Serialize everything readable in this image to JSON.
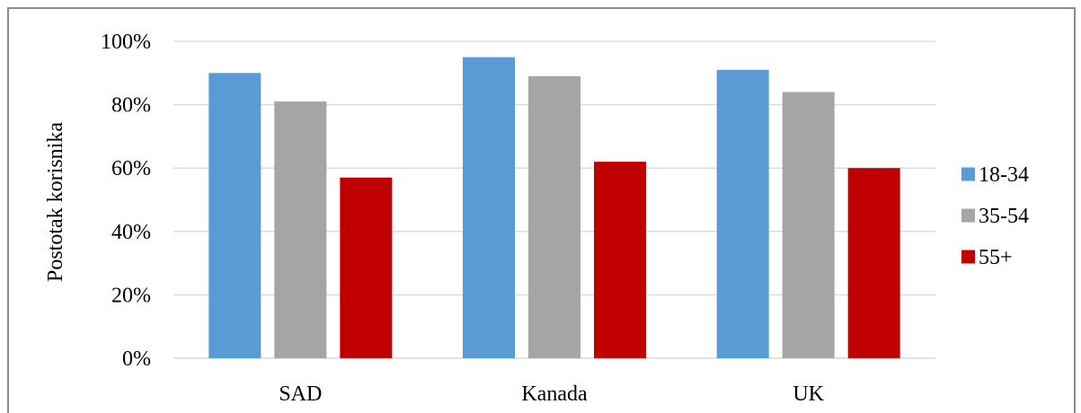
{
  "chart_data": {
    "type": "bar",
    "title": "",
    "xlabel": "",
    "ylabel": "Postotak korisnika",
    "categories": [
      "SAD",
      "Kanada",
      "UK"
    ],
    "series": [
      {
        "name": "18-34",
        "color": "#5b9bd5",
        "values": [
          90,
          95,
          91
        ]
      },
      {
        "name": "35-54",
        "color": "#a5a5a5",
        "values": [
          81,
          89,
          84
        ]
      },
      {
        "name": "55+",
        "color": "#c00000",
        "values": [
          57,
          62,
          60
        ]
      }
    ],
    "ylim": [
      0,
      100
    ],
    "yticks": [
      "0%",
      "20%",
      "40%",
      "60%",
      "80%",
      "100%"
    ],
    "grid": true,
    "legend_position": "right"
  }
}
